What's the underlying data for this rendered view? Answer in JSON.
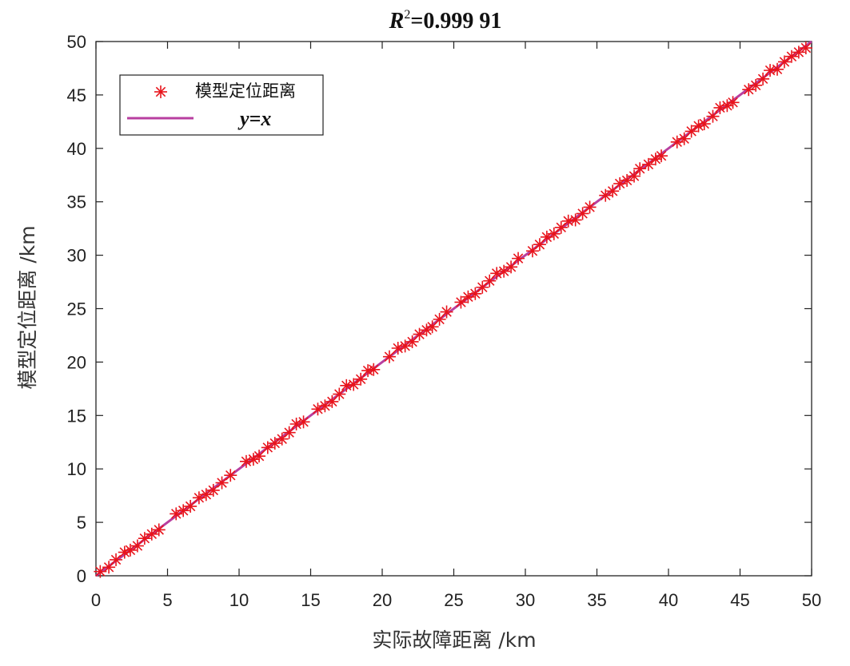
{
  "chart_data": {
    "type": "scatter",
    "title": "R²=0.999 91",
    "title_parts": {
      "r": "R",
      "sup": "2",
      "rest": "=0.999 91"
    },
    "xlabel": "实际故障距离 /km",
    "ylabel": "模型定位距离 /km",
    "xlim": [
      0,
      50
    ],
    "ylim": [
      0,
      50
    ],
    "xticks": [
      0,
      5,
      10,
      15,
      20,
      25,
      30,
      35,
      40,
      45,
      50
    ],
    "yticks": [
      0,
      5,
      10,
      15,
      20,
      25,
      30,
      35,
      40,
      45,
      50
    ],
    "grid": false,
    "legend_position": "top-left",
    "series": [
      {
        "name": "模型定位距离",
        "kind": "scatter",
        "marker": "asterisk",
        "color": "#e8141c",
        "x": [
          0.3,
          0.9,
          1.4,
          2.0,
          2.4,
          2.9,
          3.4,
          3.9,
          4.4,
          5.6,
          6.1,
          6.6,
          7.2,
          7.7,
          8.2,
          8.8,
          9.4,
          10.5,
          11.0,
          11.4,
          12.0,
          12.5,
          13.0,
          13.5,
          14.0,
          14.5,
          15.5,
          16.0,
          16.5,
          17.0,
          17.5,
          18.0,
          18.5,
          19.0,
          19.4,
          20.5,
          21.1,
          21.6,
          22.1,
          22.6,
          23.1,
          23.5,
          24.0,
          24.5,
          25.5,
          26.0,
          26.5,
          27.0,
          27.5,
          28.0,
          28.5,
          29.0,
          29.5,
          30.5,
          31.0,
          31.5,
          32.0,
          32.5,
          33.0,
          33.5,
          34.0,
          34.5,
          35.6,
          36.1,
          36.6,
          37.1,
          37.6,
          38.0,
          38.6,
          39.1,
          39.5,
          40.6,
          41.1,
          41.6,
          42.1,
          42.5,
          43.1,
          43.6,
          44.1,
          44.5,
          45.6,
          46.1,
          46.6,
          47.1,
          47.6,
          48.1,
          48.6,
          49.1,
          49.6
        ],
        "y": [
          0.4,
          0.8,
          1.5,
          2.2,
          2.4,
          2.8,
          3.5,
          3.9,
          4.3,
          5.8,
          6.1,
          6.5,
          7.3,
          7.6,
          8.0,
          8.7,
          9.4,
          10.7,
          10.9,
          11.2,
          12.0,
          12.4,
          12.8,
          13.4,
          14.2,
          14.4,
          15.6,
          15.9,
          16.3,
          17.0,
          17.8,
          17.9,
          18.4,
          19.2,
          19.3,
          20.5,
          21.3,
          21.5,
          21.9,
          22.6,
          23.0,
          23.3,
          24.0,
          24.7,
          25.6,
          26.1,
          26.4,
          27.0,
          27.6,
          28.3,
          28.5,
          28.9,
          29.7,
          30.4,
          31.0,
          31.7,
          32.0,
          32.6,
          33.2,
          33.3,
          33.9,
          34.5,
          35.6,
          36.0,
          36.7,
          37.0,
          37.4,
          38.1,
          38.5,
          39.0,
          39.3,
          40.6,
          40.9,
          41.6,
          42.1,
          42.3,
          43.0,
          43.8,
          44.0,
          44.3,
          45.5,
          45.9,
          46.5,
          47.3,
          47.4,
          48.1,
          48.6,
          49.0,
          49.4
        ]
      },
      {
        "name": "y=x",
        "kind": "line",
        "color": "#b83fa0",
        "x": [
          0,
          50
        ],
        "y": [
          0,
          50
        ]
      }
    ]
  }
}
